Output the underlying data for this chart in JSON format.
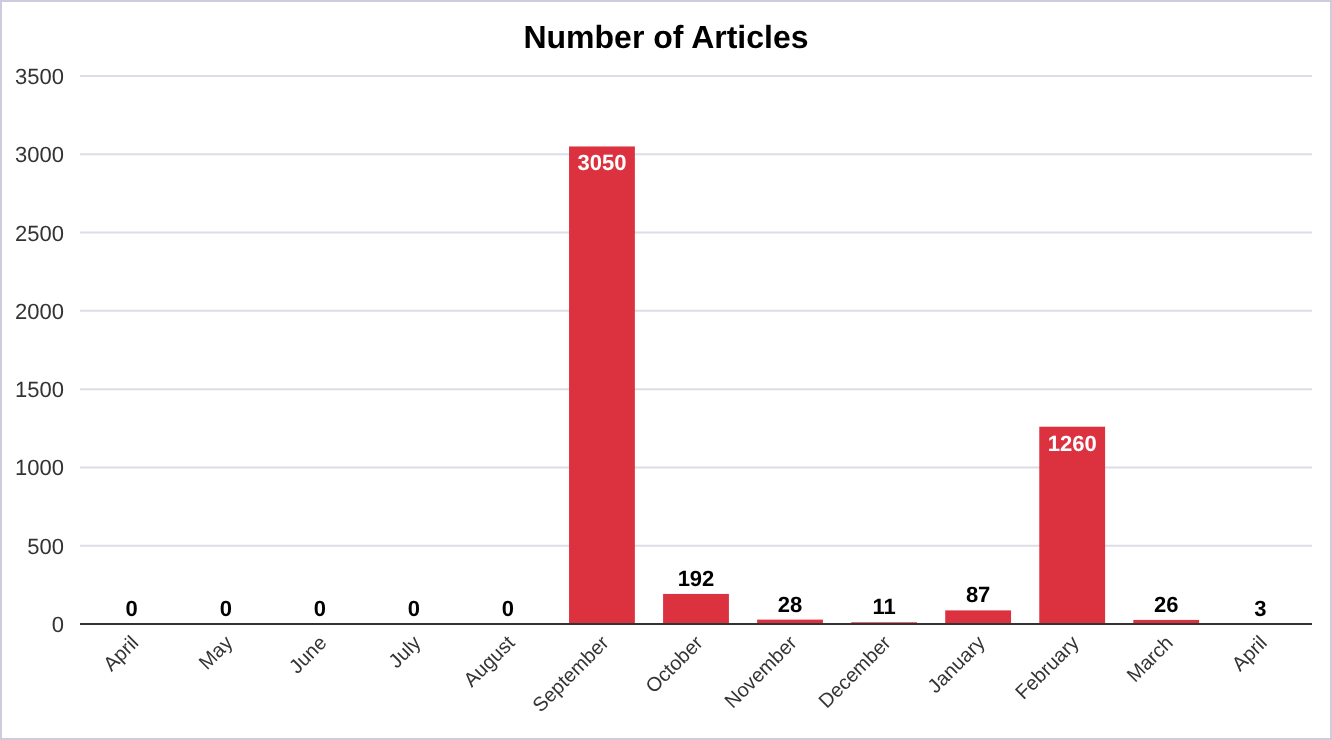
{
  "chart_data": {
    "type": "bar",
    "title": "Number of Articles",
    "categories": [
      "April",
      "May",
      "June",
      "July",
      "August",
      "September",
      "October",
      "November",
      "December",
      "January",
      "February",
      "March",
      "April"
    ],
    "values": [
      0,
      0,
      0,
      0,
      0,
      3050,
      192,
      28,
      11,
      87,
      1260,
      26,
      3
    ],
    "color": "#dc3240",
    "ylim": [
      0,
      3500
    ],
    "yticks": [
      0,
      500,
      1000,
      1500,
      2000,
      2500,
      3000,
      3500
    ],
    "grid": "y",
    "data_labels": true
  }
}
